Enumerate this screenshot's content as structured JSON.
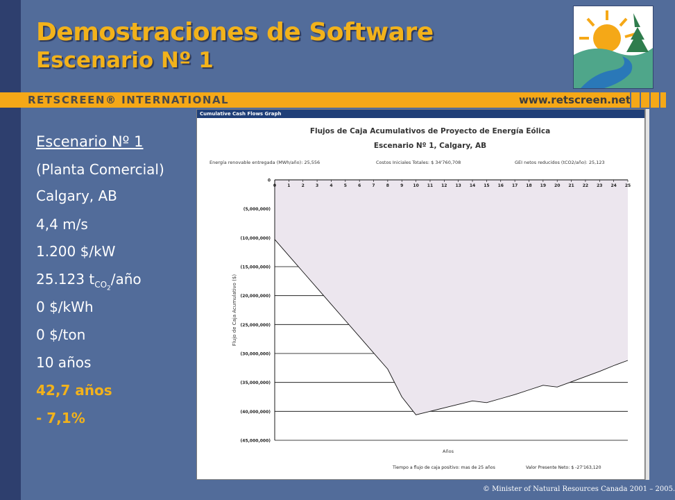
{
  "slide": {
    "title_line1": "Demostraciones de Software",
    "title_line2": "Escenario Nº 1",
    "brand": "RETSCREEN® INTERNATIONAL",
    "url": "www.retscreen.net",
    "copyright": "© Minister of Natural Resources Canada 2001 – 2005."
  },
  "params": {
    "heading": "Escenario Nº 1",
    "plant": "(Planta Comercial)",
    "location": "Calgary, AB",
    "wind_speed": "4,4 m/s",
    "cost": "1.200 $/kW",
    "ghg_value": "25.123 t",
    "ghg_sub": "CO",
    "ghg_sub2": "2",
    "ghg_unit": "/año",
    "electricity_rate": "0 $/kWh",
    "credit_rate": "0 $/ton",
    "term": "10 años",
    "payback": "42,7 años",
    "npv_pct": "- 7,1%"
  },
  "chart_window": {
    "titlebar": "Cumulative Cash Flows Graph"
  },
  "colors": {
    "background": "#526c9a",
    "accent": "#f2b21b",
    "band": "#f5a817",
    "area_fill": "#ece6ee"
  },
  "chart_data": {
    "type": "area",
    "title": "Flujos de Caja Acumulativos de Proyecto de Energía Eólica",
    "subtitle": "Escenario Nº 1, Calgary, AB",
    "info_energy": "Energía renovable entregada (MWh/año): 25,556",
    "info_cost": "Costos Iniciales Totales: $ 34'760,708",
    "info_ghg": "GEI netos reducidos (tCO2/año): 25,123",
    "xlabel": "Años",
    "ylabel": "Flujo de Caja Acumulativo ($)",
    "footer_payback": "Tiempo a flujo de caja positivo: mas de 25 años",
    "footer_npv": "Valor Presente Neto:    $  -27'163,120",
    "x": [
      0,
      1,
      2,
      3,
      4,
      5,
      6,
      7,
      8,
      9,
      10,
      11,
      12,
      13,
      14,
      15,
      16,
      17,
      18,
      19,
      20,
      21,
      22,
      23,
      24,
      25
    ],
    "x_tick_labels": [
      "0",
      "1",
      "2",
      "3",
      "4",
      "5",
      "6",
      "7",
      "8",
      "9",
      "10",
      "11",
      "12",
      "13",
      "14",
      "15",
      "16",
      "17",
      "18",
      "19",
      "20",
      "21",
      "22",
      "23",
      "24",
      "25"
    ],
    "y_tick_labels": [
      "0",
      "(5,000,000)",
      "(10,000,000)",
      "(15,000,000)",
      "(20,000,000)",
      "(25,000,000)",
      "(30,000,000)",
      "(35,000,000)",
      "(40,000,000)",
      "(45,000,000)"
    ],
    "y_ticks": [
      0,
      -5000000,
      -10000000,
      -15000000,
      -20000000,
      -25000000,
      -30000000,
      -35000000,
      -40000000,
      -45000000
    ],
    "ylim": [
      -45000000,
      0
    ],
    "series": [
      {
        "values": [
          -10300000,
          -13100000,
          -15900000,
          -18700000,
          -21500000,
          -24300000,
          -27100000,
          -29900000,
          -32700000,
          -37500000,
          -40600000,
          -40000000,
          -39400000,
          -38800000,
          -38200000,
          -38500000,
          -37800000,
          -37100000,
          -36300000,
          -35500000,
          -35800000,
          -34900000,
          -34000000,
          -33100000,
          -32100000,
          -31200000
        ]
      }
    ],
    "grid": true,
    "legend": "none"
  }
}
